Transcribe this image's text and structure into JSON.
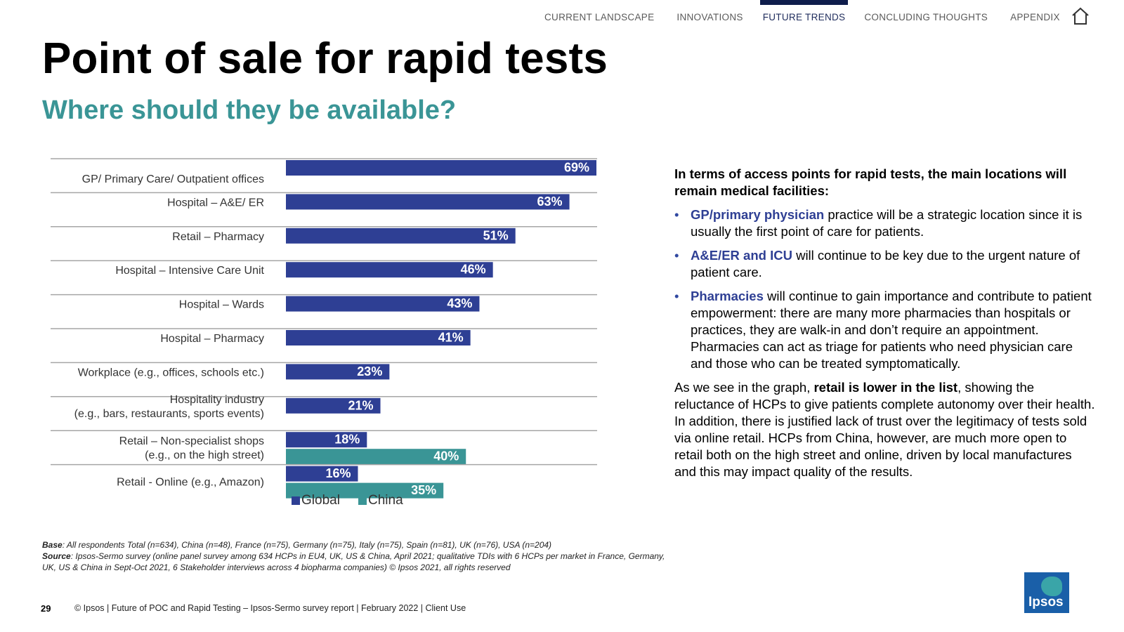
{
  "nav": {
    "tabs": [
      {
        "label": "CURRENT LANDSCAPE",
        "active": false
      },
      {
        "label": "INNOVATIONS",
        "active": false
      },
      {
        "label": "FUTURE TRENDS",
        "active": true
      },
      {
        "label": "CONCLUDING THOUGHTS",
        "active": false
      },
      {
        "label": "APPENDIX",
        "active": false
      }
    ],
    "home_icon": "home-icon"
  },
  "page": {
    "title": "Point of sale for rapid tests",
    "subtitle": "Where should they be available?"
  },
  "chart_data": {
    "type": "bar",
    "orientation": "horizontal",
    "categories": [
      "GP/ Primary Care/ Outpatient offices",
      "Hospital – A&E/ ER",
      "Retail – Pharmacy",
      "Hospital – Intensive Care Unit",
      "Hospital – Wards",
      "Hospital – Pharmacy",
      "Workplace (e.g., offices, schools etc.)",
      "Hospitality industry\n(e.g., bars, restaurants, sports events)",
      "Retail – Non-specialist shops\n(e.g., on the high street)",
      "Retail - Online (e.g., Amazon)"
    ],
    "series": [
      {
        "name": "Global",
        "color": "#2e3f94",
        "values": [
          69,
          63,
          51,
          46,
          43,
          41,
          23,
          21,
          18,
          16
        ]
      },
      {
        "name": "China",
        "color": "#3a9596",
        "values": [
          null,
          null,
          null,
          null,
          null,
          null,
          null,
          null,
          40,
          35
        ]
      }
    ],
    "value_suffix": "%",
    "xlim": [
      0,
      70
    ],
    "legend_position": "bottom",
    "grid": false
  },
  "panel": {
    "intro": "In terms of access points for rapid tests, the main locations will remain medical facilities:",
    "bullets": [
      {
        "highlight": "GP/primary physician",
        "text": " practice will be a strategic location since it is usually the first point of care for patients."
      },
      {
        "highlight": "A&E/ER and ICU",
        "text": " will continue to be key due to the urgent nature of patient care."
      },
      {
        "highlight": "Pharmacies",
        "text": " will continue to gain importance and contribute to patient empowerment: there are many more pharmacies than hospitals or practices, they are walk-in and don’t require an appointment. Pharmacies can act as triage for patients who need physician care and those who can be treated symptomatically."
      }
    ],
    "para_before": "As we see in the graph, ",
    "para_bold": "retail is lower in the list",
    "para_after": ", showing the reluctance of HCPs to give patients complete autonomy over their health. In addition, there is justified lack of trust over the legitimacy of tests sold via online retail. HCPs from China, however, are much more open to retail both on the high street and online, driven by local manufactures and this may impact quality of the results."
  },
  "footnotes": {
    "base_label": "Base",
    "base_text": ": All respondents Total (n=634), China (n=48), France (n=75), Germany (n=75), Italy (n=75), Spain (n=81), UK (n=76), USA (n=204)",
    "source_label": "Source",
    "source_text": ": Ipsos-Sermo survey (online panel survey among 634 HCPs in EU4, UK, US & China, April 2021; qualitative TDIs with 6 HCPs per market in France, Germany, UK, US & China in Sept-Oct 2021, 6 Stakeholder interviews across 4 biopharma companies) © Ipsos 2021, all rights reserved"
  },
  "footer": {
    "page_number": "29",
    "text": "© Ipsos | Future of POC and Rapid Testing – Ipsos-Sermo survey report | February 2022 | Client Use"
  },
  "logo": {
    "text": "Ipsos"
  }
}
